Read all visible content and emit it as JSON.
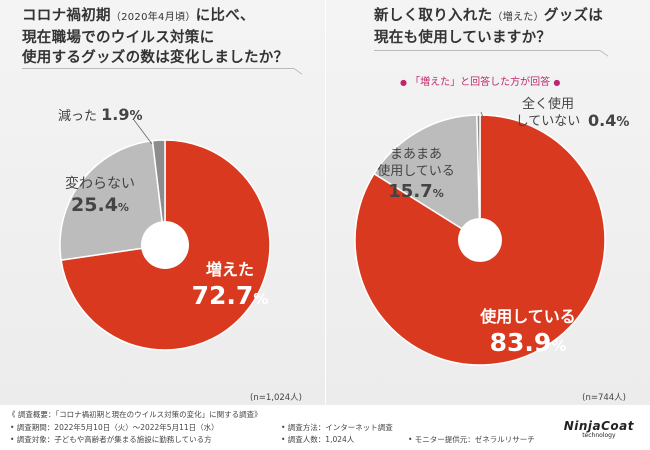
{
  "question1": {
    "line1_a": "コロナ禍初期",
    "line1_small": "（2020年4月頃）",
    "line1_b": "に比べ、",
    "line2": "現在職場でのウイルス対策に",
    "line3": "使用するグッズの数は変化しましたか？"
  },
  "question2": {
    "line1_a": "新しく取り入れた",
    "line1_small": "（増えた）",
    "line1_b": "グッズは",
    "line2": "現在も使用していますか？"
  },
  "note": {
    "bullet": "●",
    "text": "「増えた」と回答した方が回答"
  },
  "n_labels": {
    "left": "(n=1,024人)",
    "right": "(n=744人)"
  },
  "colors": {
    "primary": "#d93a1f",
    "secondary": "#bcbcbc",
    "minor": "#8c8c8c",
    "accent_note": "#c0266e"
  },
  "chart_data": [
    {
      "type": "pie",
      "title": "コロナ禍初期（2020年4月頃）に比べ、現在職場でのウイルス対策に使用するグッズの数は変化しましたか？",
      "donut": true,
      "categories": [
        "増えた",
        "変わらない",
        "減った"
      ],
      "values": [
        72.7,
        25.4,
        1.9
      ],
      "value_labels": [
        "72.7%",
        "25.4%",
        "1.9%"
      ],
      "unit": "%",
      "n": "n=1,024人"
    },
    {
      "type": "pie",
      "title": "新しく取り入れた（増えた）グッズは現在も使用していますか？",
      "donut": true,
      "categories": [
        "使用している",
        "まあまあ使用している",
        "全く使用していない"
      ],
      "category_lines": [
        [
          "使用している"
        ],
        [
          "まあまあ",
          "使用している"
        ],
        [
          "全く使用",
          "していない"
        ]
      ],
      "values": [
        83.9,
        15.7,
        0.4
      ],
      "value_labels": [
        "83.9%",
        "15.7%",
        "0.4%"
      ],
      "unit": "%",
      "n": "n=744人"
    }
  ],
  "footer": {
    "title": "《 調査概要：「コロナ禍初期と現在のウイルス対策の変化」に関する調査》",
    "period": "• 調査期間：2022年5月10日（火）〜2022年5月11日（水）",
    "target": "• 調査対象：子どもや高齢者が集まる施設に勤務している方",
    "method": "• 調査方法：インターネット調査",
    "count": "• 調査人数：1,024人",
    "provider": "• モニター提供元：ゼネラルリサーチ"
  },
  "logo": {
    "main": "NinjaCoat",
    "sub": "technology"
  }
}
